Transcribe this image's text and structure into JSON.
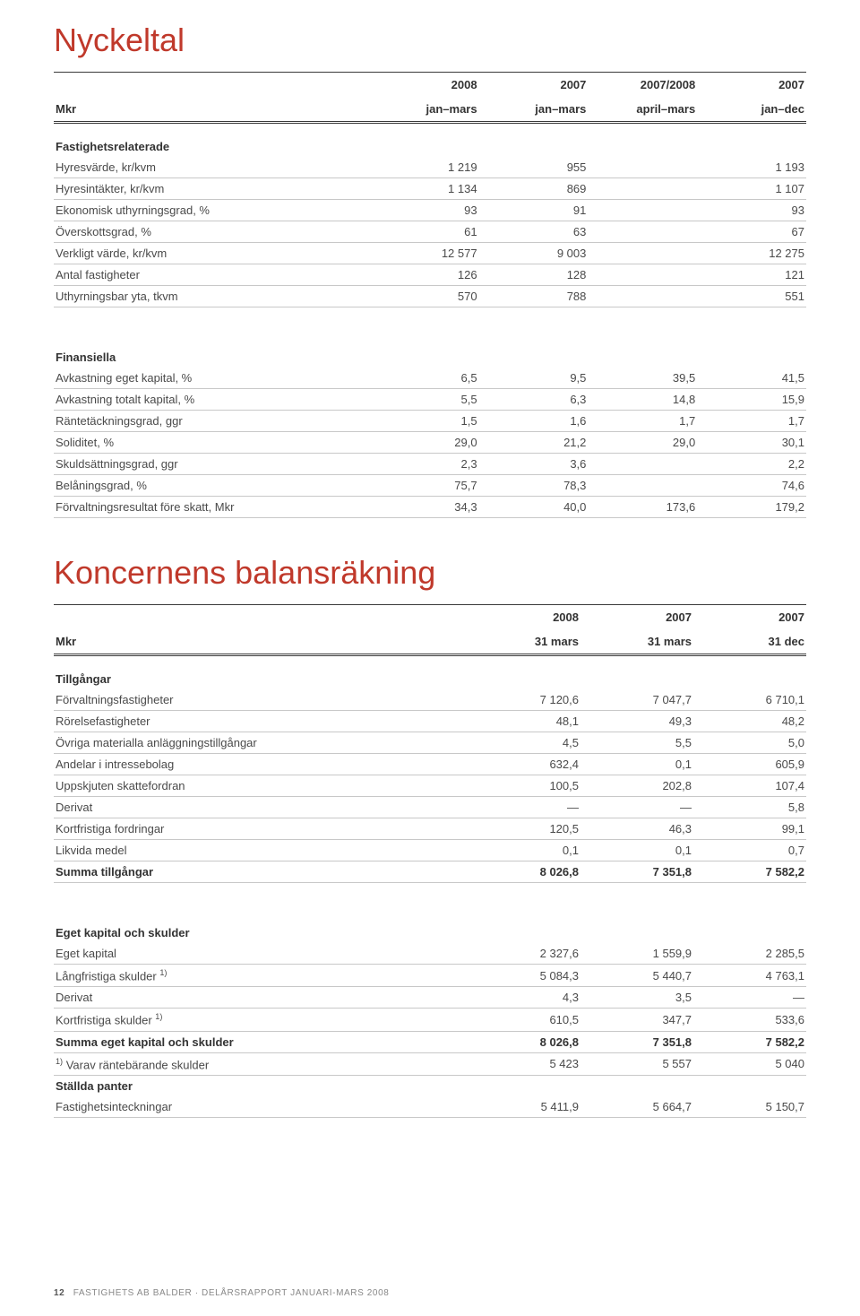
{
  "colors": {
    "title": "#c0392b",
    "text": "#4a4a4a",
    "text_strong": "#333333",
    "row_border": "#c8c8c8",
    "head_border": "#3a3a3a",
    "background": "#ffffff",
    "footer": "#888888"
  },
  "typography": {
    "title_fontsize_pt": 27,
    "body_fontsize_pt": 10,
    "header_weight": 600,
    "font_family": "Helvetica Neue, Arial, sans-serif"
  },
  "table1": {
    "title": "Nyckeltal",
    "unit_label": "Mkr",
    "columns": [
      {
        "year": "2008",
        "period": "jan–mars"
      },
      {
        "year": "2007",
        "period": "jan–mars"
      },
      {
        "year": "2007/2008",
        "period": "april–mars"
      },
      {
        "year": "2007",
        "period": "jan–dec"
      }
    ],
    "col_widths_pct": [
      42,
      14.5,
      14.5,
      14.5,
      14.5
    ],
    "sections": [
      {
        "header": "Fastighetsrelaterade",
        "rows": [
          {
            "label": "Hyresvärde, kr/kvm",
            "vals": [
              "1 219",
              "955",
              "",
              "1 193"
            ]
          },
          {
            "label": "Hyresintäkter, kr/kvm",
            "vals": [
              "1 134",
              "869",
              "",
              "1 107"
            ]
          },
          {
            "label": "Ekonomisk uthyrningsgrad, %",
            "vals": [
              "93",
              "91",
              "",
              "93"
            ]
          },
          {
            "label": "Överskottsgrad, %",
            "vals": [
              "61",
              "63",
              "",
              "67"
            ]
          },
          {
            "label": "Verkligt värde, kr/kvm",
            "vals": [
              "12 577",
              "9 003",
              "",
              "12 275"
            ]
          },
          {
            "label": "Antal fastigheter",
            "vals": [
              "126",
              "128",
              "",
              "121"
            ]
          },
          {
            "label": "Uthyrningsbar yta, tkvm",
            "vals": [
              "570",
              "788",
              "",
              "551"
            ]
          }
        ]
      },
      {
        "header": "Finansiella",
        "rows": [
          {
            "label": "Avkastning eget kapital, %",
            "vals": [
              "6,5",
              "9,5",
              "39,5",
              "41,5"
            ]
          },
          {
            "label": "Avkastning totalt kapital, %",
            "vals": [
              "5,5",
              "6,3",
              "14,8",
              "15,9"
            ]
          },
          {
            "label": "Räntetäckningsgrad, ggr",
            "vals": [
              "1,5",
              "1,6",
              "1,7",
              "1,7"
            ]
          },
          {
            "label": "Soliditet, %",
            "vals": [
              "29,0",
              "21,2",
              "29,0",
              "30,1"
            ]
          },
          {
            "label": "Skuldsättningsgrad, ggr",
            "vals": [
              "2,3",
              "3,6",
              "",
              "2,2"
            ]
          },
          {
            "label": "Belåningsgrad, %",
            "vals": [
              "75,7",
              "78,3",
              "",
              "74,6"
            ]
          },
          {
            "label": "Förvaltningsresultat före skatt, Mkr",
            "vals": [
              "34,3",
              "40,0",
              "173,6",
              "179,2"
            ]
          }
        ]
      }
    ]
  },
  "table2": {
    "title": "Koncernens balansräkning",
    "unit_label": "Mkr",
    "columns": [
      {
        "year": "2008",
        "period": "31 mars"
      },
      {
        "year": "2007",
        "period": "31 mars"
      },
      {
        "year": "2007",
        "period": "31 dec"
      }
    ],
    "col_widths_pct": [
      55,
      15,
      15,
      15
    ],
    "sections": [
      {
        "header": "Tillgångar",
        "rows": [
          {
            "label": "Förvaltningsfastigheter",
            "vals": [
              "7 120,6",
              "7 047,7",
              "6 710,1"
            ]
          },
          {
            "label": "Rörelsefastigheter",
            "vals": [
              "48,1",
              "49,3",
              "48,2"
            ]
          },
          {
            "label": "Övriga materialla anläggningstillgångar",
            "vals": [
              "4,5",
              "5,5",
              "5,0"
            ]
          },
          {
            "label": "Andelar i intressebolag",
            "vals": [
              "632,4",
              "0,1",
              "605,9"
            ]
          },
          {
            "label": "Uppskjuten skattefordran",
            "vals": [
              "100,5",
              "202,8",
              "107,4"
            ]
          },
          {
            "label": "Derivat",
            "vals": [
              "—",
              "—",
              "5,8"
            ]
          },
          {
            "label": "Kortfristiga fordringar",
            "vals": [
              "120,5",
              "46,3",
              "99,1"
            ]
          },
          {
            "label": "Likvida medel",
            "vals": [
              "0,1",
              "0,1",
              "0,7"
            ]
          },
          {
            "label": "Summa tillgångar",
            "vals": [
              "8 026,8",
              "7 351,8",
              "7 582,2"
            ],
            "bold": true
          }
        ]
      },
      {
        "header": "Eget kapital och skulder",
        "rows": [
          {
            "label": "Eget kapital",
            "vals": [
              "2 327,6",
              "1 559,9",
              "2 285,5"
            ]
          },
          {
            "label_html": "Långfristiga skulder <sup>1)</sup>",
            "vals": [
              "5 084,3",
              "5 440,7",
              "4 763,1"
            ]
          },
          {
            "label": "Derivat",
            "vals": [
              "4,3",
              "3,5",
              "—"
            ]
          },
          {
            "label_html": "Kortfristiga skulder <sup>1)</sup>",
            "vals": [
              "610,5",
              "347,7",
              "533,6"
            ]
          },
          {
            "label": "Summa eget kapital och skulder",
            "vals": [
              "8 026,8",
              "7 351,8",
              "7 582,2"
            ],
            "bold": true
          },
          {
            "label_html": "<sup>1)</sup> Varav räntebärande skulder",
            "vals": [
              "5 423",
              "5 557",
              "5 040"
            ]
          },
          {
            "label": "Ställda panter",
            "vals": [
              "",
              "",
              ""
            ],
            "bold": true,
            "noborder": true
          },
          {
            "label": "Fastighetsinteckningar",
            "vals": [
              "5 411,9",
              "5 664,7",
              "5 150,7"
            ]
          }
        ]
      }
    ]
  },
  "footer": {
    "page_number": "12",
    "text": "FASTIGHETS AB BALDER · DELÅRSRAPPORT JANUARI-MARS 2008"
  }
}
